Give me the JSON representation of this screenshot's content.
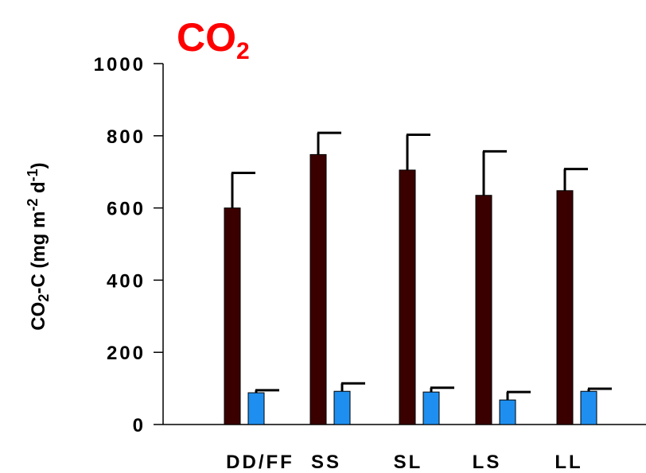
{
  "chart_data": {
    "type": "bar",
    "title": {
      "main": "CO",
      "subscript": "2"
    },
    "ylabel": {
      "prefix": "CO",
      "sub": "2",
      "middle": "-C (mg m",
      "sup1": "-2",
      "space": " d",
      "sup2": "-1",
      "suffix": ")"
    },
    "categories": [
      "DD/FF",
      "SS",
      "SL",
      "LS",
      "LL"
    ],
    "ylim": [
      0,
      1000
    ],
    "yticks": [
      "0",
      "200",
      "400",
      "600",
      "800",
      "1000"
    ],
    "grid": false,
    "series": [
      {
        "color": "#3a0000",
        "values": [
          600,
          748,
          705,
          635,
          648
        ],
        "errors": [
          97,
          60,
          98,
          122,
          60
        ]
      },
      {
        "color": "#1e8ff0",
        "values": [
          88,
          92,
          90,
          68,
          92
        ],
        "errors": [
          7,
          22,
          12,
          22,
          7
        ]
      }
    ],
    "colors": {
      "title": "#ff0000",
      "axis": "#000000",
      "errorbar": "#000000"
    }
  }
}
